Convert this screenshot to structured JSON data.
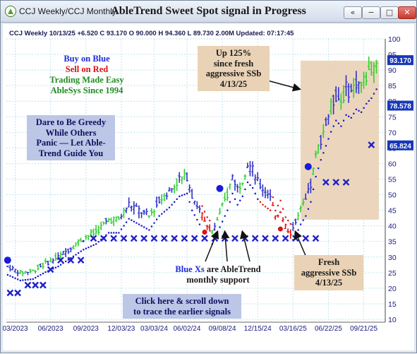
{
  "window": {
    "app_title": "CCJ Weekly/CCJ Monthly",
    "chart_title": "AbleTrend Sweet Spot signal in Progress",
    "buttons": {
      "back": "«",
      "minimize": "−",
      "maximize": "□",
      "close": "✕"
    }
  },
  "header_line": "CCJ  Weekly 10/13/25 +6.520 C 93.170 O 90.000 H 94.360 L 89.730 2.00M Updated: 07:17:45",
  "price_tags": [
    {
      "value": "93.170",
      "price": 93.17
    },
    {
      "value": "78.578",
      "price": 78.578
    },
    {
      "value": "65.824",
      "price": 65.824
    }
  ],
  "annotations": {
    "legend": [
      "Buy on Blue",
      "Sell on Red",
      "Trading Made Easy",
      "AbleSys Since 1994"
    ],
    "greedy": [
      "Dare to Be Greedy",
      "While Others",
      "Panic — Let Able-",
      "Trend Guide You"
    ],
    "up_box": [
      "Up 125%",
      "since fresh",
      "aggressive SSb",
      "4/13/25"
    ],
    "fresh_box": [
      "Fresh",
      "aggressive SSb",
      "4/13/25"
    ],
    "blue_xs": [
      "Blue Xs are AbleTrend",
      "monthly support"
    ],
    "blue_xs_highlight": "Blue Xs",
    "click": [
      "Click here & scroll down",
      "to trace the earlier signals"
    ]
  },
  "colors": {
    "up_bar": "#2fd12f",
    "down_bar": "#e01010",
    "neutral_bar": "#3030c8",
    "stop_blue": "#1010d0",
    "stop_red": "#e01010",
    "x_marker": "#2020c8",
    "highlight_box": "#e9d2b6",
    "info_box": "#bcc6e6",
    "price_tag": "#1838b8"
  },
  "chart_data": {
    "type": "ohlc",
    "title": "AbleTrend Sweet Spot signal in Progress",
    "xlabel": "",
    "ylabel": "",
    "ylim": [
      10,
      100
    ],
    "yticks": [
      10,
      15,
      20,
      25,
      30,
      35,
      40,
      45,
      50,
      55,
      60,
      65,
      70,
      75,
      80,
      85,
      90,
      95,
      100
    ],
    "xticks": [
      "03/2023",
      "06/2023",
      "09/2023",
      "12/03/23",
      "03/03/24",
      "06/02/24",
      "09/08/24",
      "12/15/24",
      "03/16/25",
      "06/22/25",
      "09/21/25"
    ],
    "xtick_weeks": [
      3,
      17,
      31,
      45,
      58,
      71,
      85,
      99,
      113,
      127,
      141
    ],
    "weeks": 150,
    "price_path": [
      [
        0,
        27
      ],
      [
        5,
        25
      ],
      [
        10,
        25.5
      ],
      [
        15,
        28
      ],
      [
        20,
        30
      ],
      [
        25,
        33
      ],
      [
        30,
        36
      ],
      [
        35,
        38
      ],
      [
        40,
        42
      ],
      [
        44,
        42
      ],
      [
        48,
        47
      ],
      [
        52,
        45
      ],
      [
        56,
        43
      ],
      [
        60,
        48
      ],
      [
        64,
        51
      ],
      [
        68,
        55
      ],
      [
        71,
        56
      ],
      [
        73,
        50
      ],
      [
        76,
        45
      ],
      [
        79,
        40
      ],
      [
        81,
        38
      ],
      [
        83,
        42
      ],
      [
        85,
        46
      ],
      [
        87,
        50
      ],
      [
        89,
        56
      ],
      [
        91,
        52
      ],
      [
        93,
        55
      ],
      [
        95,
        60
      ],
      [
        97,
        58
      ],
      [
        99,
        54
      ],
      [
        101,
        52
      ],
      [
        104,
        50
      ],
      [
        106,
        42
      ],
      [
        108,
        45
      ],
      [
        110,
        40
      ],
      [
        112,
        38
      ],
      [
        114,
        41
      ],
      [
        116,
        45
      ],
      [
        118,
        48
      ],
      [
        120,
        53
      ],
      [
        122,
        62
      ],
      [
        124,
        68
      ],
      [
        126,
        73
      ],
      [
        128,
        78
      ],
      [
        130,
        82
      ],
      [
        132,
        80
      ],
      [
        134,
        84
      ],
      [
        136,
        83
      ],
      [
        138,
        86
      ],
      [
        140,
        85
      ],
      [
        142,
        88
      ],
      [
        144,
        90
      ],
      [
        146,
        93.17
      ]
    ],
    "monthly_support_x": [
      [
        1,
        18.5
      ],
      [
        4,
        18.5
      ],
      [
        8,
        21
      ],
      [
        11,
        21
      ],
      [
        14,
        21
      ],
      [
        17,
        26
      ],
      [
        21,
        29
      ],
      [
        25,
        29
      ],
      [
        29,
        29
      ],
      [
        34,
        36
      ],
      [
        38,
        36
      ],
      [
        42,
        36
      ],
      [
        46,
        36
      ],
      [
        50,
        36
      ],
      [
        54,
        36
      ],
      [
        58,
        36
      ],
      [
        62,
        36
      ],
      [
        66,
        36
      ],
      [
        70,
        36
      ],
      [
        74,
        36
      ],
      [
        78,
        36
      ],
      [
        82,
        36
      ],
      [
        86,
        36
      ],
      [
        90,
        36
      ],
      [
        94,
        36
      ],
      [
        98,
        36
      ],
      [
        102,
        36
      ],
      [
        106,
        36
      ],
      [
        110,
        36
      ],
      [
        114,
        36
      ],
      [
        118,
        36
      ],
      [
        122,
        36
      ],
      [
        126,
        54
      ],
      [
        130,
        54
      ],
      [
        134,
        54
      ],
      [
        144,
        66
      ]
    ],
    "buy_signals": [
      [
        0,
        29
      ],
      [
        84,
        52
      ],
      [
        119,
        59
      ]
    ],
    "sell_signals": [
      [
        78,
        38
      ],
      [
        108,
        39
      ]
    ]
  },
  "footer_ticks_visible": true
}
